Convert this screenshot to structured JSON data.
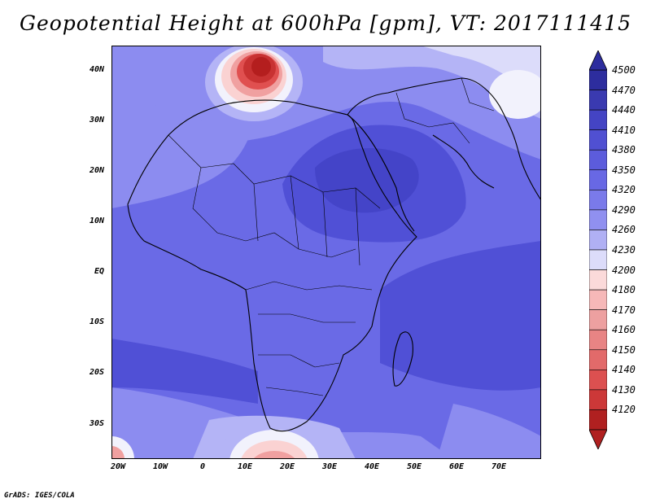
{
  "title": "Geopotential Height at 600hPa [gpm], VT: 2017111415",
  "footer": "GrADS: IGES/COLA",
  "map": {
    "lat_labels": [
      "40N",
      "30N",
      "20N",
      "10N",
      "EQ",
      "10S",
      "20S",
      "30S"
    ],
    "lon_labels": [
      "20W",
      "10W",
      "0",
      "10E",
      "20E",
      "30E",
      "40E",
      "50E",
      "60E",
      "70E"
    ],
    "fill_colors": {
      "deep": "#5050d6",
      "mid": "#6a6ae6",
      "light": "#8c8cf0",
      "pale": "#b4b4f6",
      "white": "#f2f2fc",
      "red_dark": "#b41e1e",
      "red_mid": "#e05050",
      "red_light": "#f0a0a0",
      "pink": "#fad2d2"
    }
  },
  "colorbar": {
    "levels": [
      "4500",
      "4470",
      "4440",
      "4410",
      "4380",
      "4350",
      "4320",
      "4290",
      "4260",
      "4230",
      "4200",
      "4180",
      "4170",
      "4160",
      "4150",
      "4140",
      "4130",
      "4120"
    ],
    "colors": [
      "#2d2d9e",
      "#3a3ab0",
      "#4444c4",
      "#5050d2",
      "#5c5cdc",
      "#6868e4",
      "#7a7aea",
      "#9090f0",
      "#b0b0f4",
      "#dcdcfa",
      "#fbdada",
      "#f6b8b8",
      "#eda0a0",
      "#e88484",
      "#e26a6a",
      "#dc5050",
      "#cc3838",
      "#b02020"
    ]
  }
}
